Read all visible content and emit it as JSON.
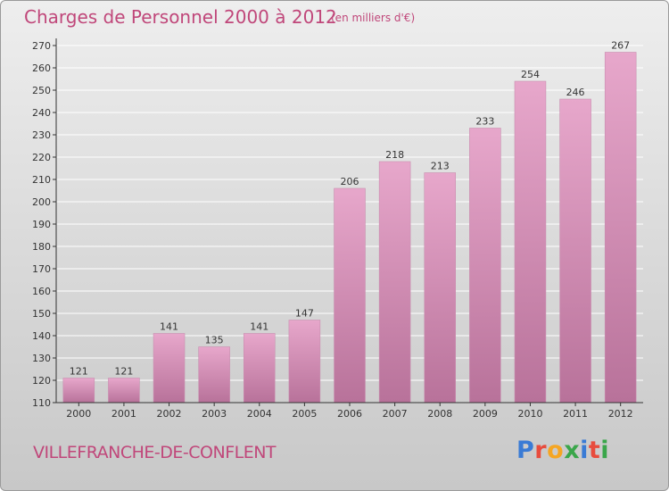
{
  "title": "Charges de Personnel 2000 à 2012",
  "subtitle": "(en milliers d'€)",
  "commune": "VILLEFRANCHE-DE-CONFLENT",
  "logo": {
    "letters": [
      "P",
      "r",
      "o",
      "x",
      "i",
      "t",
      "i"
    ],
    "colors": [
      "#3a7bd5",
      "#e84c3d",
      "#f5a623",
      "#3aa64a",
      "#3a7bd5",
      "#e84c3d",
      "#3aa64a"
    ]
  },
  "colors": {
    "title": "#c0477a",
    "bar_top": "#e7a7cb",
    "bar_bottom": "#b8729a",
    "axis": "#333333",
    "grid": "#ffffff"
  },
  "chart_data": {
    "type": "bar",
    "title": "Charges de Personnel 2000 à 2012",
    "subtitle": "(en milliers d'€)",
    "xlabel": "",
    "ylabel": "",
    "categories": [
      "2000",
      "2001",
      "2002",
      "2003",
      "2004",
      "2005",
      "2006",
      "2007",
      "2008",
      "2009",
      "2010",
      "2011",
      "2012"
    ],
    "values": [
      121,
      121,
      141,
      135,
      141,
      147,
      206,
      218,
      213,
      233,
      254,
      246,
      267
    ],
    "ylim": [
      110,
      270
    ],
    "yticks": [
      110,
      120,
      130,
      140,
      150,
      160,
      170,
      180,
      190,
      200,
      210,
      220,
      230,
      240,
      250,
      260,
      270
    ],
    "grid": true,
    "data_labels": true
  }
}
